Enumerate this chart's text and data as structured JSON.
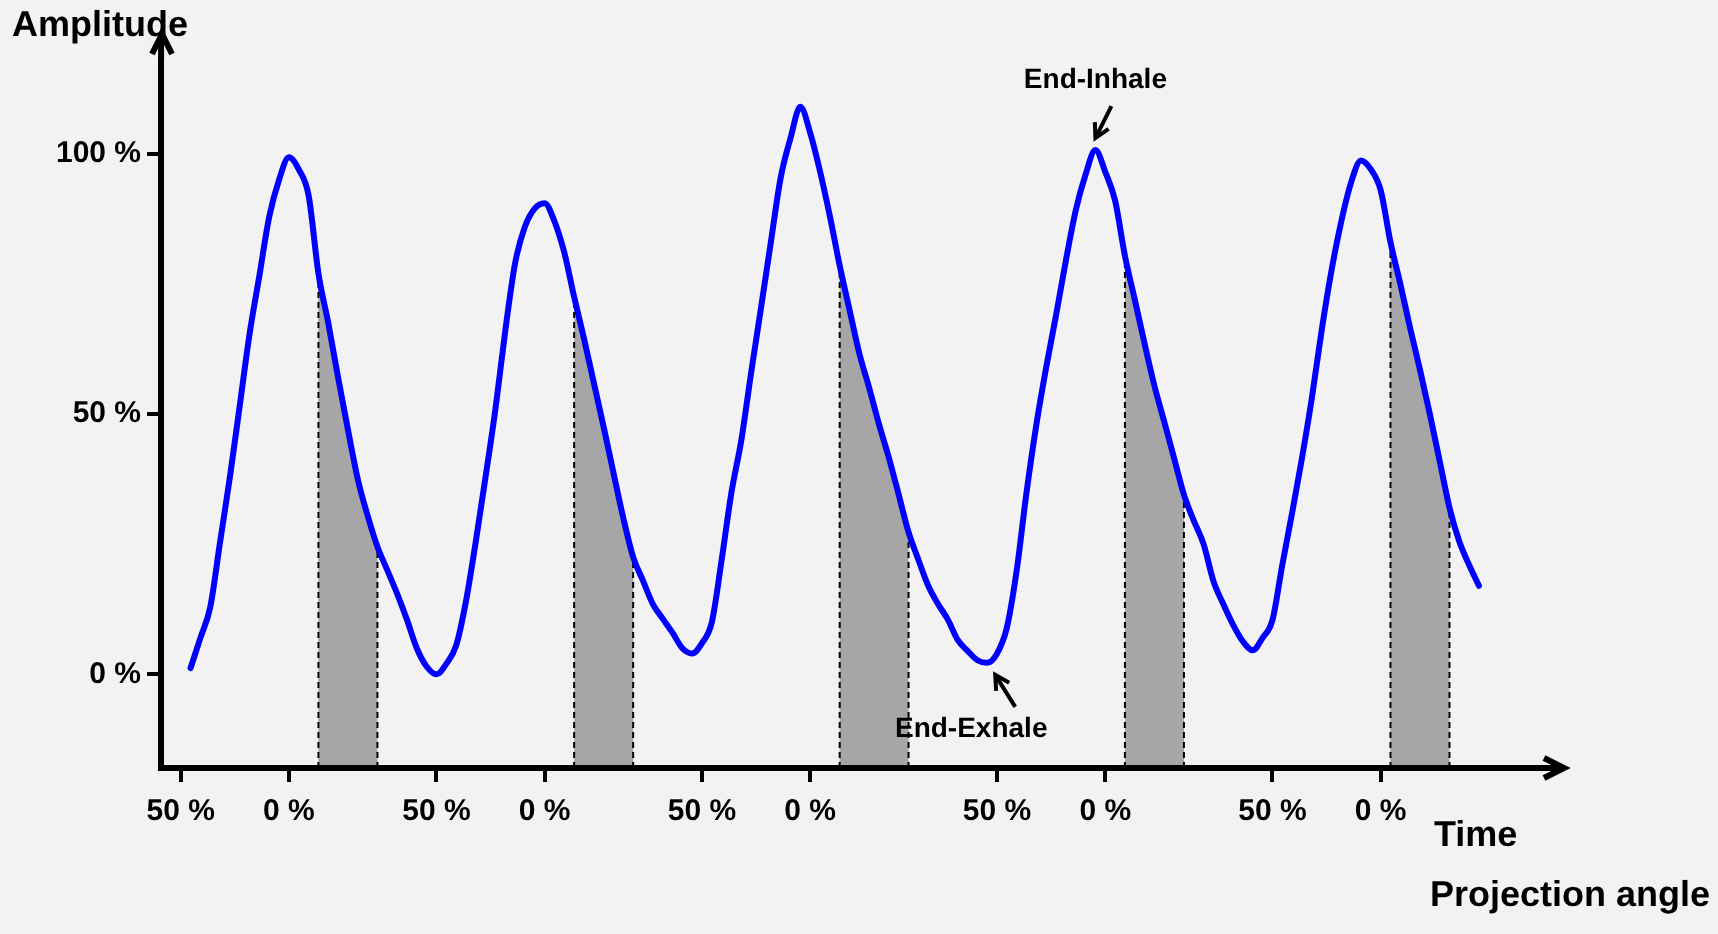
{
  "chart_data": {
    "type": "line",
    "ylabel": "Amplitude",
    "xlabel": "Time",
    "categories": [
      null,
      null,
      "50 %",
      null,
      null,
      null,
      null,
      null,
      null,
      null,
      null,
      null,
      null,
      "0 %",
      null,
      null,
      null,
      null,
      null,
      null,
      null,
      null,
      null,
      null,
      null,
      null,
      null,
      null,
      "50 %",
      null,
      null,
      null,
      null,
      null,
      null,
      null,
      null,
      null,
      null,
      "0 %",
      null,
      null,
      null,
      null,
      null,
      null,
      null,
      null,
      null,
      null,
      null,
      null,
      null,
      null,
      null,
      "50 %",
      null,
      null,
      null,
      null,
      null,
      null,
      null,
      null,
      null,
      null,
      "0 %",
      null,
      null,
      null,
      null,
      null,
      null,
      null,
      null,
      null,
      null,
      null,
      null,
      null,
      null,
      null,
      null,
      null,
      null,
      "50 %",
      null,
      null,
      null,
      null,
      null,
      null,
      null,
      null,
      null,
      null,
      "0 %",
      null,
      null,
      null,
      null,
      null,
      null,
      null,
      null,
      null,
      null,
      null,
      null,
      null,
      null,
      null,
      null,
      "50 %",
      null,
      null,
      null,
      null,
      null,
      null,
      null,
      null,
      null,
      null,
      "0 %",
      null,
      null,
      null,
      null,
      null,
      null,
      null,
      null,
      null,
      null,
      null,
      null,
      null,
      null,
      null,
      null
    ],
    "series": [
      {
        "color": "#0000ff",
        "values": [
          null,
          null,
          null,
          1.2,
          7,
          12.9,
          25.4,
          37.9,
          51.6,
          65.4,
          76.6,
          87.9,
          95,
          99.3,
          97,
          92,
          77,
          67.5,
          57,
          47,
          37.5,
          30.5,
          24.5,
          20,
          15.5,
          10.5,
          5,
          1.5,
          0,
          2,
          5.5,
          14,
          25.5,
          38,
          51,
          66,
          79,
          86,
          89.5,
          90.5,
          87,
          81,
          72.5,
          64.5,
          56,
          47.5,
          38.7,
          30,
          22.5,
          18,
          13.5,
          10.7,
          8,
          5,
          4,
          6,
          10,
          22,
          35,
          45,
          58,
          70.4,
          83,
          95.4,
          103,
          109,
          104,
          96.6,
          88,
          78.5,
          70,
          61.6,
          55,
          48,
          41.6,
          34.5,
          27.3,
          22,
          17,
          13.5,
          10.5,
          6.6,
          4.5,
          2.7,
          2.2,
          4,
          9,
          20,
          35,
          48,
          59,
          69,
          79.5,
          89.1,
          96,
          100.7,
          96.5,
          91,
          80.4,
          72,
          63.5,
          55.4,
          48.5,
          41.5,
          34.5,
          29.5,
          25,
          17.9,
          13.5,
          9.5,
          6.3,
          4.6,
          7,
          10.4,
          21,
          31,
          41.5,
          53,
          66,
          77.5,
          87,
          94.5,
          98.7,
          97,
          93,
          83,
          75,
          66.5,
          58.5,
          50,
          41,
          32,
          25.5,
          21,
          17,
          null,
          null,
          null,
          null,
          null,
          null
        ]
      }
    ],
    "ylim": [
      -18,
      118
    ],
    "yticks": [
      {
        "value": 0,
        "label": "0 %"
      },
      {
        "value": 50,
        "label": "50 %"
      },
      {
        "value": 100,
        "label": "100 %"
      }
    ],
    "annotations": [
      {
        "text": "End-Inhale",
        "y": 100.7
      },
      {
        "text": "End-Exhale",
        "y": 2.2
      },
      "Projection angle"
    ],
    "marker": "none",
    "line_style": "solid",
    "legend": false
  }
}
